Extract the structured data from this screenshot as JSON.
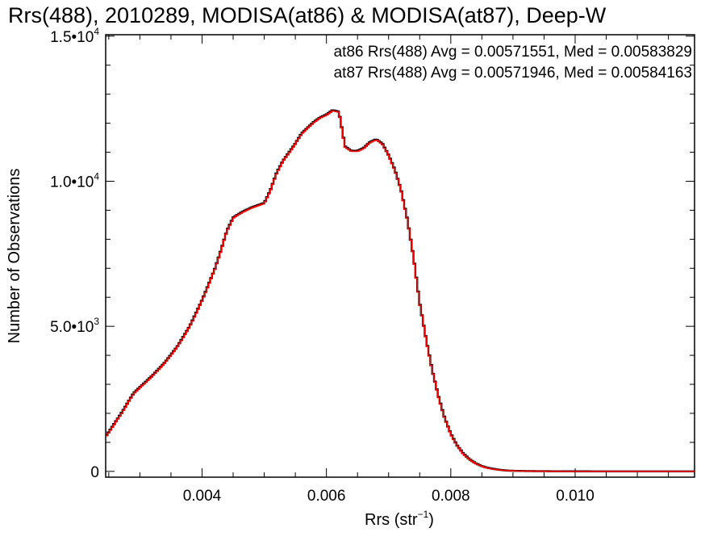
{
  "chart_data": {
    "type": "line",
    "title": "Rrs(488), 2010289, MODISA(at86) & MODISA(at87), Deep-W",
    "xlabel": {
      "main": "Rrs (str",
      "sup": "−1",
      "tail": ")"
    },
    "ylabel": "Number of Observations",
    "xlim": [
      0.00245,
      0.01192
    ],
    "ylim": [
      -200,
      15050
    ],
    "x_ticks": [
      {
        "value": 0.004,
        "label": "0.004"
      },
      {
        "value": 0.006,
        "label": "0.006"
      },
      {
        "value": 0.008,
        "label": "0.008"
      },
      {
        "value": 0.01,
        "label": "0.010"
      }
    ],
    "y_ticks": [
      {
        "value": 0,
        "base": "0",
        "exp": ""
      },
      {
        "value": 5000,
        "base": "5.0•10",
        "exp": "3"
      },
      {
        "value": 10000,
        "base": "1.0•10",
        "exp": "4"
      },
      {
        "value": 15000,
        "base": "1.5•10",
        "exp": "4"
      }
    ],
    "annotations": [
      {
        "text": "at86 Rrs(488) Avg = 0.00571551, Med = 0.00583829",
        "color": "#000000"
      },
      {
        "text": "at87 Rrs(488) Avg = 0.00571946, Med = 0.00584163",
        "color": "#ff0000"
      }
    ],
    "series": [
      {
        "color": "#000000",
        "x": [
          0.00245,
          0.0027,
          0.0029,
          0.003,
          0.0032,
          0.0034,
          0.0036,
          0.0038,
          0.004,
          0.0042,
          0.0043,
          0.0044,
          0.0045,
          0.00465,
          0.0048,
          0.005,
          0.0051,
          0.0052,
          0.0053,
          0.0054,
          0.0055,
          0.0056,
          0.0057,
          0.0058,
          0.0059,
          0.006,
          0.0061,
          0.0062,
          0.00625,
          0.0063,
          0.0064,
          0.0065,
          0.0066,
          0.0067,
          0.0068,
          0.0069,
          0.007,
          0.0071,
          0.0072,
          0.0073,
          0.0074,
          0.0075,
          0.0076,
          0.0077,
          0.0078,
          0.0079,
          0.008,
          0.0081,
          0.0082,
          0.0083,
          0.0084,
          0.0085,
          0.0086,
          0.0087,
          0.0088,
          0.0089,
          0.009,
          0.0092,
          0.0094,
          0.0096,
          0.0098,
          0.01,
          0.0104,
          0.0108,
          0.01192
        ],
        "y": [
          1200,
          2000,
          2700,
          2900,
          3300,
          3750,
          4300,
          5000,
          5900,
          6950,
          7600,
          8300,
          8750,
          8950,
          9100,
          9250,
          9700,
          10300,
          10700,
          11000,
          11300,
          11650,
          11850,
          12050,
          12200,
          12300,
          12450,
          12400,
          11800,
          11200,
          11050,
          11050,
          11150,
          11350,
          11450,
          11300,
          10900,
          10400,
          9700,
          8700,
          7400,
          5800,
          4600,
          3500,
          2600,
          1850,
          1300,
          900,
          620,
          420,
          280,
          180,
          120,
          80,
          50,
          30,
          20,
          12,
          7,
          5,
          3,
          2,
          1,
          0,
          0
        ]
      },
      {
        "color": "#ff0000",
        "x": [
          0.00245,
          0.0027,
          0.0029,
          0.003,
          0.0032,
          0.0034,
          0.0036,
          0.0038,
          0.004,
          0.0042,
          0.0043,
          0.0044,
          0.0045,
          0.00465,
          0.0048,
          0.005,
          0.0051,
          0.0052,
          0.0053,
          0.0054,
          0.0055,
          0.0056,
          0.0057,
          0.0058,
          0.0059,
          0.006,
          0.0061,
          0.0062,
          0.00625,
          0.0063,
          0.0064,
          0.0065,
          0.0066,
          0.0067,
          0.0068,
          0.0069,
          0.007,
          0.0071,
          0.0072,
          0.0073,
          0.0074,
          0.0075,
          0.0076,
          0.0077,
          0.0078,
          0.0079,
          0.008,
          0.0081,
          0.0082,
          0.0083,
          0.0084,
          0.0085,
          0.0086,
          0.0087,
          0.0088,
          0.0089,
          0.009,
          0.0092,
          0.0094,
          0.0096,
          0.0098,
          0.01,
          0.0104,
          0.0108,
          0.01192
        ],
        "y": [
          1180,
          1980,
          2680,
          2880,
          3280,
          3730,
          4280,
          4980,
          5880,
          6930,
          7580,
          8280,
          8730,
          8930,
          9080,
          9230,
          9680,
          10280,
          10680,
          10980,
          11280,
          11630,
          11830,
          12030,
          12180,
          12280,
          12430,
          12380,
          11780,
          11180,
          11030,
          11030,
          11130,
          11330,
          11430,
          11280,
          10880,
          10380,
          9680,
          8680,
          7380,
          5780,
          4580,
          3480,
          2580,
          1830,
          1280,
          880,
          600,
          400,
          270,
          170,
          110,
          70,
          45,
          28,
          18,
          10,
          6,
          4,
          2,
          1,
          0,
          0,
          0
        ]
      }
    ],
    "grid": false,
    "legend_placement": "top-right"
  }
}
